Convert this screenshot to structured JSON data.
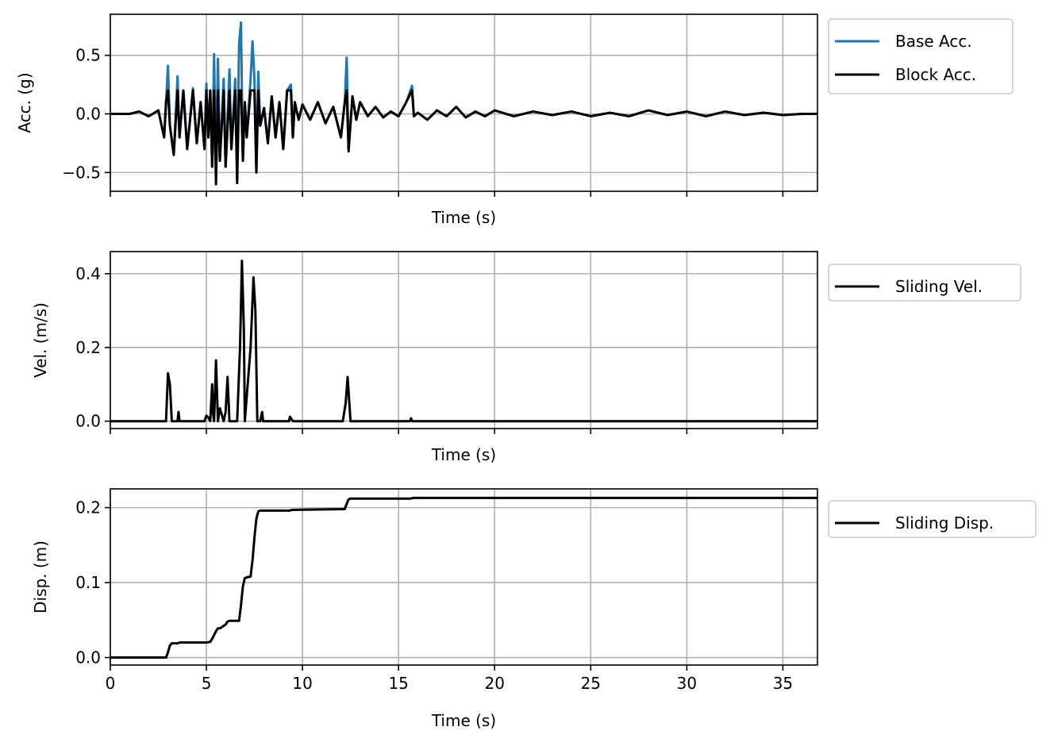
{
  "colors": {
    "base": "#1f77b4",
    "black": "#000000",
    "grid": "#b0b0b0",
    "frame": "#000000"
  },
  "chart_data": [
    {
      "type": "line",
      "panel": "acceleration",
      "xlabel": "Time (s)",
      "ylabel": "Acc. (g)",
      "xlim": [
        0,
        36.8
      ],
      "ylim": [
        -0.66,
        0.85
      ],
      "xticks": [
        0,
        5,
        10,
        15,
        20,
        25,
        30,
        35
      ],
      "xtick_labels": [
        "",
        "",
        "",
        "",
        "",
        "",
        "",
        ""
      ],
      "yticks": [
        -0.5,
        0.0,
        0.5
      ],
      "ytick_labels": [
        "−0.5",
        "0.0",
        "0.5"
      ],
      "grid": true,
      "legend_position": "outside-top-right",
      "series": [
        {
          "name": "Base Acc.",
          "color": "#1f77b4",
          "x": [
            0,
            1.0,
            1.5,
            2.0,
            2.5,
            2.8,
            2.9,
            3.0,
            3.1,
            3.3,
            3.5,
            3.6,
            3.8,
            4.0,
            4.3,
            4.5,
            4.7,
            4.9,
            5.0,
            5.1,
            5.2,
            5.3,
            5.4,
            5.5,
            5.6,
            5.7,
            5.9,
            6.0,
            6.2,
            6.3,
            6.5,
            6.6,
            6.7,
            6.8,
            6.9,
            7.0,
            7.1,
            7.3,
            7.4,
            7.5,
            7.6,
            7.7,
            7.8,
            8.0,
            8.2,
            8.4,
            8.6,
            8.8,
            9.0,
            9.2,
            9.4,
            9.5,
            9.6,
            9.8,
            10.0,
            10.4,
            10.8,
            11.2,
            11.6,
            12.0,
            12.2,
            12.3,
            12.4,
            12.6,
            12.8,
            13.0,
            13.4,
            13.8,
            14.2,
            14.6,
            15.0,
            15.4,
            15.7,
            15.8,
            16.0,
            16.5,
            17.0,
            17.5,
            18.0,
            18.5,
            19.0,
            19.5,
            20.0,
            21.0,
            22.0,
            23.0,
            24.0,
            25.0,
            26.0,
            27.0,
            28.0,
            29.0,
            30.0,
            31.0,
            32.0,
            33.0,
            34.0,
            35.0,
            36.0,
            36.8
          ],
          "y": [
            0.0,
            0.0,
            0.02,
            -0.02,
            0.03,
            -0.2,
            0.1,
            0.41,
            -0.1,
            -0.35,
            0.32,
            -0.2,
            0.2,
            -0.3,
            0.22,
            -0.25,
            0.1,
            -0.3,
            0.26,
            -0.2,
            0.2,
            -0.45,
            0.51,
            -0.5,
            0.47,
            -0.4,
            0.3,
            -0.45,
            0.38,
            -0.3,
            0.3,
            -0.55,
            0.6,
            0.78,
            -0.4,
            0.1,
            -0.2,
            0.3,
            0.62,
            0.3,
            -0.5,
            0.36,
            -0.1,
            0.05,
            -0.25,
            0.15,
            -0.2,
            0.1,
            -0.3,
            0.2,
            0.25,
            -0.2,
            0.1,
            -0.05,
            0.08,
            -0.05,
            0.1,
            -0.08,
            0.06,
            -0.2,
            0.1,
            0.48,
            -0.3,
            0.15,
            -0.05,
            0.1,
            -0.02,
            0.06,
            -0.03,
            0.02,
            -0.02,
            0.1,
            0.24,
            -0.02,
            0.01,
            -0.05,
            0.03,
            -0.02,
            0.06,
            -0.03,
            0.02,
            -0.02,
            0.03,
            -0.02,
            0.02,
            -0.01,
            0.02,
            -0.02,
            0.01,
            -0.02,
            0.03,
            -0.01,
            0.02,
            -0.02,
            0.02,
            -0.01,
            0.01,
            -0.01,
            0.0,
            0.0
          ]
        },
        {
          "name": "Block Acc.",
          "color": "#000000",
          "x": [
            0,
            1.0,
            1.5,
            2.0,
            2.5,
            2.8,
            2.9,
            3.0,
            3.1,
            3.3,
            3.5,
            3.6,
            3.8,
            4.0,
            4.3,
            4.5,
            4.7,
            4.9,
            5.0,
            5.1,
            5.2,
            5.3,
            5.4,
            5.5,
            5.6,
            5.7,
            5.9,
            6.0,
            6.2,
            6.3,
            6.5,
            6.6,
            6.7,
            6.8,
            6.9,
            7.0,
            7.1,
            7.3,
            7.4,
            7.5,
            7.6,
            7.7,
            7.8,
            8.0,
            8.2,
            8.4,
            8.6,
            8.8,
            9.0,
            9.2,
            9.4,
            9.5,
            9.6,
            9.8,
            10.0,
            10.4,
            10.8,
            11.2,
            11.6,
            12.0,
            12.2,
            12.3,
            12.4,
            12.6,
            12.8,
            13.0,
            13.4,
            13.8,
            14.2,
            14.6,
            15.0,
            15.4,
            15.7,
            15.8,
            16.0,
            16.5,
            17.0,
            17.5,
            18.0,
            18.5,
            19.0,
            19.5,
            20.0,
            21.0,
            22.0,
            23.0,
            24.0,
            25.0,
            26.0,
            27.0,
            28.0,
            29.0,
            30.0,
            31.0,
            32.0,
            33.0,
            34.0,
            35.0,
            36.0,
            36.8
          ],
          "y": [
            0.0,
            0.0,
            0.02,
            -0.02,
            0.03,
            -0.2,
            0.1,
            0.2,
            -0.1,
            -0.35,
            0.2,
            -0.2,
            0.2,
            -0.3,
            0.2,
            -0.25,
            0.1,
            -0.3,
            0.2,
            -0.2,
            0.2,
            -0.45,
            0.2,
            -0.6,
            0.2,
            -0.4,
            0.2,
            -0.45,
            0.2,
            -0.3,
            0.2,
            -0.59,
            0.2,
            0.2,
            -0.4,
            0.1,
            -0.2,
            0.2,
            0.2,
            0.2,
            -0.5,
            0.2,
            -0.1,
            0.05,
            -0.25,
            0.15,
            -0.2,
            0.1,
            -0.3,
            0.2,
            0.2,
            -0.2,
            0.1,
            -0.05,
            0.08,
            -0.05,
            0.1,
            -0.08,
            0.06,
            -0.2,
            0.1,
            0.2,
            -0.32,
            0.15,
            -0.05,
            0.1,
            -0.02,
            0.06,
            -0.03,
            0.02,
            -0.02,
            0.1,
            0.2,
            -0.02,
            0.01,
            -0.05,
            0.03,
            -0.02,
            0.06,
            -0.03,
            0.02,
            -0.02,
            0.03,
            -0.02,
            0.02,
            -0.01,
            0.02,
            -0.02,
            0.01,
            -0.02,
            0.03,
            -0.01,
            0.02,
            -0.02,
            0.02,
            -0.01,
            0.01,
            -0.01,
            0.0,
            0.0
          ]
        }
      ]
    },
    {
      "type": "line",
      "panel": "velocity",
      "xlabel": "Time (s)",
      "ylabel": "Vel. (m/s)",
      "xlim": [
        0,
        36.8
      ],
      "ylim": [
        -0.02,
        0.46
      ],
      "xticks": [
        0,
        5,
        10,
        15,
        20,
        25,
        30,
        35
      ],
      "xtick_labels": [
        "",
        "",
        "",
        "",
        "",
        "",
        "",
        ""
      ],
      "yticks": [
        0.0,
        0.2,
        0.4
      ],
      "ytick_labels": [
        "0.0",
        "0.2",
        "0.4"
      ],
      "grid": true,
      "legend_position": "outside-top-right",
      "series": [
        {
          "name": "Sliding Vel.",
          "color": "#000000",
          "x": [
            0,
            2.9,
            3.0,
            3.1,
            3.2,
            3.5,
            3.55,
            3.6,
            4.9,
            5.0,
            5.1,
            5.2,
            5.3,
            5.35,
            5.4,
            5.5,
            5.6,
            5.7,
            5.9,
            6.0,
            6.1,
            6.2,
            6.6,
            6.75,
            6.85,
            6.95,
            7.0,
            7.3,
            7.45,
            7.55,
            7.65,
            7.8,
            7.9,
            7.95,
            8.0,
            9.3,
            9.35,
            9.4,
            9.45,
            9.5,
            12.1,
            12.25,
            12.35,
            12.45,
            12.5,
            15.6,
            15.65,
            15.7,
            36.8
          ],
          "y": [
            0,
            0,
            0.13,
            0.1,
            0,
            0,
            0.025,
            0,
            0,
            0.015,
            0.01,
            0,
            0.1,
            0.02,
            0,
            0.165,
            0,
            0.035,
            0,
            0.025,
            0.12,
            0,
            0,
            0.2,
            0.435,
            0.25,
            0,
            0.2,
            0.39,
            0.3,
            0,
            0,
            0.025,
            0,
            0,
            0,
            0.012,
            0.008,
            0.004,
            0,
            0,
            0.05,
            0.12,
            0.04,
            0,
            0,
            0.008,
            0,
            0
          ]
        }
      ]
    },
    {
      "type": "line",
      "panel": "displacement",
      "xlabel": "Time (s)",
      "ylabel": "Disp. (m)",
      "xlim": [
        0,
        36.8
      ],
      "ylim": [
        -0.01,
        0.225
      ],
      "xticks": [
        0,
        5,
        10,
        15,
        20,
        25,
        30,
        35
      ],
      "xtick_labels": [
        "0",
        "5",
        "10",
        "15",
        "20",
        "25",
        "30",
        "35"
      ],
      "yticks": [
        0.0,
        0.1,
        0.2
      ],
      "ytick_labels": [
        "0.0",
        "0.1",
        "0.2"
      ],
      "grid": true,
      "legend_position": "outside-top-right",
      "series": [
        {
          "name": "Sliding Disp.",
          "color": "#000000",
          "x": [
            0,
            2.9,
            3.0,
            3.1,
            3.2,
            3.5,
            3.6,
            5.0,
            5.2,
            5.3,
            5.4,
            5.5,
            5.6,
            5.7,
            6.0,
            6.1,
            6.2,
            6.7,
            6.8,
            6.9,
            7.0,
            7.1,
            7.3,
            7.4,
            7.5,
            7.6,
            7.7,
            7.8,
            9.3,
            9.5,
            12.2,
            12.3,
            12.4,
            12.5,
            15.6,
            15.8,
            36.8
          ],
          "y": [
            0,
            0,
            0.007,
            0.016,
            0.019,
            0.019,
            0.02,
            0.02,
            0.021,
            0.025,
            0.03,
            0.035,
            0.039,
            0.039,
            0.044,
            0.048,
            0.049,
            0.049,
            0.07,
            0.095,
            0.106,
            0.107,
            0.108,
            0.13,
            0.16,
            0.185,
            0.195,
            0.196,
            0.196,
            0.197,
            0.198,
            0.205,
            0.211,
            0.212,
            0.212,
            0.213,
            0.213
          ]
        }
      ]
    }
  ]
}
